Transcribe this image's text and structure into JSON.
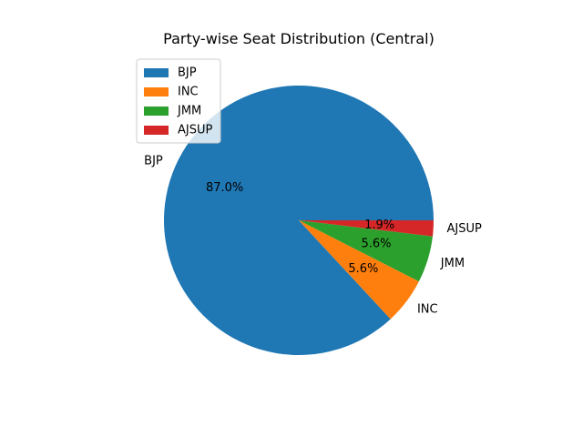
{
  "chart_data": {
    "type": "pie",
    "title": "Party-wise Seat Distribution (Central)",
    "slices": [
      {
        "label": "BJP",
        "percent_label": "87.0%",
        "value": 87.0,
        "color": "#1f77b4"
      },
      {
        "label": "INC",
        "percent_label": "5.6%",
        "value": 5.6,
        "color": "#ff7f0e"
      },
      {
        "label": "JMM",
        "percent_label": "5.6%",
        "value": 5.6,
        "color": "#2ca02c"
      },
      {
        "label": "AJSUP",
        "percent_label": "1.9%",
        "value": 1.9,
        "color": "#d62728"
      }
    ],
    "legend": {
      "position": "upper-left",
      "entries": [
        "BJP",
        "INC",
        "JMM",
        "AJSUP"
      ]
    }
  }
}
